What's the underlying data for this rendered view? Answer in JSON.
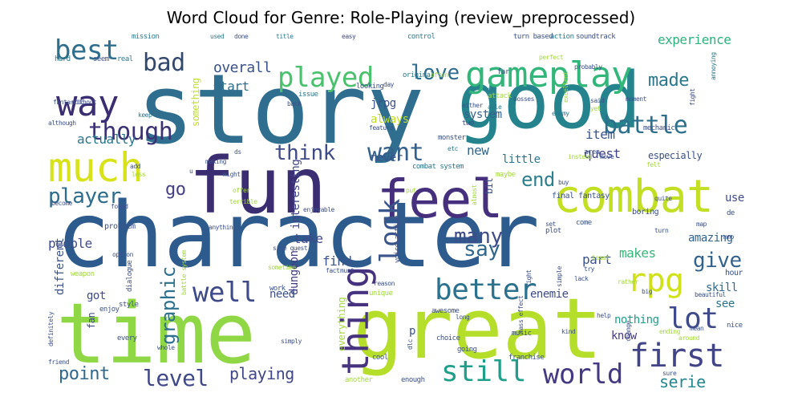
{
  "figure": {
    "title": "Word Cloud for Genre: Role-Playing (review_preprocessed)"
  },
  "chart_data": {
    "type": "wordcloud",
    "words": [
      {
        "text": "story",
        "size": 120,
        "color": "#2f6e8e"
      },
      {
        "text": "good",
        "size": 96,
        "color": "#25838e"
      },
      {
        "text": "character",
        "size": 112,
        "color": "#2e5b8d"
      },
      {
        "text": "time",
        "size": 104,
        "color": "#8fd744"
      },
      {
        "text": "great",
        "size": 104,
        "color": "#b5de2b"
      },
      {
        "text": "fun",
        "size": 96,
        "color": "#3b2d72"
      },
      {
        "text": "feel",
        "size": 66,
        "color": "#462f7c"
      },
      {
        "text": "combat",
        "size": 56,
        "color": "#c2df23"
      },
      {
        "text": "much",
        "size": 50,
        "color": "#d8e219"
      },
      {
        "text": "gameplay",
        "size": 44,
        "color": "#32b67a"
      },
      {
        "text": "played",
        "size": 34,
        "color": "#4ac16d"
      },
      {
        "text": "way",
        "size": 44,
        "color": "#3b2d72"
      },
      {
        "text": "best",
        "size": 34,
        "color": "#2e6e8e"
      },
      {
        "text": "bad",
        "size": 30,
        "color": "#32486f"
      },
      {
        "text": "love",
        "size": 26,
        "color": "#2f6c8e"
      },
      {
        "text": "though",
        "size": 30,
        "color": "#3b3275"
      },
      {
        "text": "thing",
        "size": 46,
        "color": "#46327e"
      },
      {
        "text": "look",
        "size": 34,
        "color": "#3a548c"
      },
      {
        "text": "want",
        "size": 30,
        "color": "#34618d"
      },
      {
        "text": "better",
        "size": 36,
        "color": "#2c728e"
      },
      {
        "text": "battle",
        "size": 30,
        "color": "#2d708e"
      },
      {
        "text": "think",
        "size": 26,
        "color": "#3e4a89"
      },
      {
        "text": "made",
        "size": 22,
        "color": "#2a788e"
      },
      {
        "text": "first",
        "size": 40,
        "color": "#414487"
      },
      {
        "text": "lot",
        "size": 36,
        "color": "#3e4a89"
      },
      {
        "text": "rpg",
        "size": 40,
        "color": "#d0e11c"
      },
      {
        "text": "still",
        "size": 36,
        "color": "#1f9e89"
      },
      {
        "text": "world",
        "size": 34,
        "color": "#443983"
      },
      {
        "text": "well",
        "size": 34,
        "color": "#3f4a8a"
      },
      {
        "text": "level",
        "size": 28,
        "color": "#3f4889"
      },
      {
        "text": "player",
        "size": 26,
        "color": "#2e6c8e"
      },
      {
        "text": "point",
        "size": 22,
        "color": "#31688e"
      },
      {
        "text": "many",
        "size": 26,
        "color": "#3e4c8a"
      },
      {
        "text": "say",
        "size": 26,
        "color": "#31678e"
      },
      {
        "text": "give",
        "size": 26,
        "color": "#33638d"
      },
      {
        "text": "end",
        "size": 24,
        "color": "#2c7f8e"
      },
      {
        "text": "go",
        "size": 22,
        "color": "#423f85"
      },
      {
        "text": "graphic",
        "size": 24,
        "color": "#2d718e"
      },
      {
        "text": "playing",
        "size": 20,
        "color": "#3f4788"
      },
      {
        "text": "serie",
        "size": 20,
        "color": "#24868e"
      },
      {
        "text": "experience",
        "size": 16,
        "color": "#2db27d"
      },
      {
        "text": "overall",
        "size": 18,
        "color": "#3b518b"
      },
      {
        "text": "start",
        "size": 16,
        "color": "#2e6f8e"
      },
      {
        "text": "actually",
        "size": 16,
        "color": "#2a768e"
      },
      {
        "text": "item",
        "size": 16,
        "color": "#3a548c"
      },
      {
        "text": "quest",
        "size": 16,
        "color": "#404688"
      },
      {
        "text": "system",
        "size": 14,
        "color": "#34618d"
      },
      {
        "text": "always",
        "size": 14,
        "color": "#c0df25"
      },
      {
        "text": "jrpg",
        "size": 14,
        "color": "#3b518b"
      },
      {
        "text": "new",
        "size": 16,
        "color": "#31678e"
      },
      {
        "text": "little",
        "size": 14,
        "color": "#2a768e"
      },
      {
        "text": "never",
        "size": 14,
        "color": "#39568c"
      },
      {
        "text": "interesting",
        "size": 14,
        "color": "#404588"
      },
      {
        "text": "dungeon",
        "size": 14,
        "color": "#433d84"
      },
      {
        "text": "people",
        "size": 16,
        "color": "#3e4c8a"
      },
      {
        "text": "take",
        "size": 16,
        "color": "#3e4989"
      },
      {
        "text": "find",
        "size": 16,
        "color": "#3a538b"
      },
      {
        "text": "part",
        "size": 16,
        "color": "#3b518b"
      },
      {
        "text": "makes",
        "size": 16,
        "color": "#35b779"
      },
      {
        "text": "amazing",
        "size": 14,
        "color": "#33638d"
      },
      {
        "text": "use",
        "size": 14,
        "color": "#3e4a89"
      },
      {
        "text": "skill",
        "size": 14,
        "color": "#31678e"
      },
      {
        "text": "see",
        "size": 14,
        "color": "#2c738e"
      },
      {
        "text": "nothing",
        "size": 14,
        "color": "#1f9e89"
      },
      {
        "text": "know",
        "size": 14,
        "color": "#443a83"
      },
      {
        "text": "enemie",
        "size": 14,
        "color": "#3e4c8a"
      },
      {
        "text": "need",
        "size": 14,
        "color": "#3b518b"
      },
      {
        "text": "got",
        "size": 14,
        "color": "#3e4989"
      },
      {
        "text": "different",
        "size": 14,
        "color": "#3b528b"
      },
      {
        "text": "everything",
        "size": 12,
        "color": "#a2da37"
      },
      {
        "text": "fan",
        "size": 12,
        "color": "#3e4a89"
      },
      {
        "text": "mission",
        "size": 9,
        "color": "#2a788e"
      },
      {
        "text": "used",
        "size": 8,
        "color": "#2a788e"
      },
      {
        "text": "done",
        "size": 8,
        "color": "#3b518b"
      },
      {
        "text": "title",
        "size": 8,
        "color": "#2a788e"
      },
      {
        "text": "easy",
        "size": 8,
        "color": "#3e4a89"
      },
      {
        "text": "control",
        "size": 9,
        "color": "#2a788e"
      },
      {
        "text": "turn based",
        "size": 9,
        "color": "#3b518b"
      },
      {
        "text": "action",
        "size": 9,
        "color": "#2a788e"
      },
      {
        "text": "soundtrack",
        "size": 9,
        "color": "#3b518b"
      },
      {
        "text": "hard",
        "size": 9,
        "color": "#2a788e"
      },
      {
        "text": "seem",
        "size": 9,
        "color": "#3b518b"
      },
      {
        "text": "real",
        "size": 9,
        "color": "#2a788e"
      },
      {
        "text": "fantastic",
        "size": 8,
        "color": "#3b518b"
      },
      {
        "text": "without",
        "size": 8,
        "color": "#3e4a89"
      },
      {
        "text": "although",
        "size": 8,
        "color": "#3b518b"
      },
      {
        "text": "keep",
        "size": 8,
        "color": "#2a788e"
      },
      {
        "text": "issue",
        "size": 9,
        "color": "#2a788e"
      },
      {
        "text": "looking",
        "size": 9,
        "color": "#3b518b"
      },
      {
        "text": "original",
        "size": 9,
        "color": "#2a788e"
      },
      {
        "text": "often",
        "size": 8,
        "color": "#a2da37"
      },
      {
        "text": "perfect",
        "size": 8,
        "color": "#a2da37"
      },
      {
        "text": "probably",
        "size": 8,
        "color": "#3b518b"
      },
      {
        "text": "far",
        "size": 9,
        "color": "#3e4a89"
      },
      {
        "text": "day",
        "size": 8,
        "color": "#3b518b"
      },
      {
        "text": "may",
        "size": 8,
        "color": "#2a788e"
      },
      {
        "text": "bosses",
        "size": 8,
        "color": "#3b518b"
      },
      {
        "text": "attack",
        "size": 9,
        "color": "#a2da37"
      },
      {
        "text": "either",
        "size": 8,
        "color": "#3b518b"
      },
      {
        "text": "able",
        "size": 8,
        "color": "#2a788e"
      },
      {
        "text": "said",
        "size": 8,
        "color": "#3b518b"
      },
      {
        "text": "yet",
        "size": 8,
        "color": "#a2da37"
      },
      {
        "text": "excellent",
        "size": 8,
        "color": "#a2da37"
      },
      {
        "text": "moment",
        "size": 8,
        "color": "#3b518b"
      },
      {
        "text": "fight",
        "size": 8,
        "color": "#3e4a89"
      },
      {
        "text": "annoying",
        "size": 8,
        "color": "#2a788e"
      },
      {
        "text": "back",
        "size": 8,
        "color": "#3b518b"
      },
      {
        "text": "let",
        "size": 8,
        "color": "#2a788e"
      },
      {
        "text": "feature",
        "size": 8,
        "color": "#3b518b"
      },
      {
        "text": "two",
        "size": 9,
        "color": "#3e4a89"
      },
      {
        "text": "monster",
        "size": 9,
        "color": "#3b518b"
      },
      {
        "text": "etc",
        "size": 8,
        "color": "#2a788e"
      },
      {
        "text": "area",
        "size": 9,
        "color": "#3b518b"
      },
      {
        "text": "enemy",
        "size": 8,
        "color": "#2a788e"
      },
      {
        "text": "mechanic",
        "size": 9,
        "color": "#3b518b"
      },
      {
        "text": "especially",
        "size": 12,
        "color": "#3b518b"
      },
      {
        "text": "move",
        "size": 8,
        "color": "#3b518b"
      },
      {
        "text": "felt",
        "size": 8,
        "color": "#a2da37"
      },
      {
        "text": "instead",
        "size": 8,
        "color": "#a2da37"
      },
      {
        "text": "combat system",
        "size": 9,
        "color": "#2a788e"
      },
      {
        "text": "maybe",
        "size": 9,
        "color": "#a2da37"
      },
      {
        "text": "making",
        "size": 8,
        "color": "#3b518b"
      },
      {
        "text": "ds",
        "size": 8,
        "color": "#3b518b"
      },
      {
        "text": "add",
        "size": 8,
        "color": "#3b518b"
      },
      {
        "text": "less",
        "size": 8,
        "color": "#a2da37"
      },
      {
        "text": "might",
        "size": 8,
        "color": "#3b518b"
      },
      {
        "text": "offer",
        "size": 8,
        "color": "#a2da37"
      },
      {
        "text": "u",
        "size": 8,
        "color": "#3b518b"
      },
      {
        "text": "put",
        "size": 8,
        "color": "#a2da37"
      },
      {
        "text": "final fantasy",
        "size": 10,
        "color": "#3b518b"
      },
      {
        "text": "boring",
        "size": 10,
        "color": "#3b518b"
      },
      {
        "text": "de",
        "size": 9,
        "color": "#3b518b"
      },
      {
        "text": "quite",
        "size": 8,
        "color": "#3b518b"
      },
      {
        "text": "buy",
        "size": 8,
        "color": "#3b518b"
      },
      {
        "text": "become",
        "size": 8,
        "color": "#3b518b"
      },
      {
        "text": "found",
        "size": 8,
        "color": "#3b518b"
      },
      {
        "text": "terrible",
        "size": 8,
        "color": "#a2da37"
      },
      {
        "text": "anything",
        "size": 8,
        "color": "#3b518b"
      },
      {
        "text": "enjoyable",
        "size": 8,
        "color": "#3b518b"
      },
      {
        "text": "problem",
        "size": 10,
        "color": "#3b518b"
      },
      {
        "text": "option",
        "size": 8,
        "color": "#3b518b"
      },
      {
        "text": "battle system",
        "size": 8,
        "color": "#a2da37"
      },
      {
        "text": "side quest",
        "size": 8,
        "color": "#3b518b"
      },
      {
        "text": "sometime",
        "size": 8,
        "color": "#a2da37"
      },
      {
        "text": "voice acting",
        "size": 9,
        "color": "#3b518b"
      },
      {
        "text": "almost",
        "size": 8,
        "color": "#a2da37"
      },
      {
        "text": "set",
        "size": 8,
        "color": "#3b518b"
      },
      {
        "text": "come",
        "size": 9,
        "color": "#3b518b"
      },
      {
        "text": "plot",
        "size": 9,
        "color": "#3b518b"
      },
      {
        "text": "turn",
        "size": 8,
        "color": "#3b518b"
      },
      {
        "text": "map",
        "size": 8,
        "color": "#3b518b"
      },
      {
        "text": "mmo",
        "size": 8,
        "color": "#3b518b"
      },
      {
        "text": "least",
        "size": 8,
        "color": "#a2da37"
      },
      {
        "text": "try",
        "size": 8,
        "color": "#3b518b"
      },
      {
        "text": "hour",
        "size": 10,
        "color": "#3b518b"
      },
      {
        "text": "lack",
        "size": 8,
        "color": "#3b518b"
      },
      {
        "text": "rather",
        "size": 8,
        "color": "#a2da37"
      },
      {
        "text": "big",
        "size": 8,
        "color": "#3b518b"
      },
      {
        "text": "beautiful",
        "size": 8,
        "color": "#3b518b"
      },
      {
        "text": "weapon",
        "size": 9,
        "color": "#a2da37"
      },
      {
        "text": "dialogue",
        "size": 9,
        "color": "#3b518b"
      },
      {
        "text": "fact",
        "size": 8,
        "color": "#3b518b"
      },
      {
        "text": "must",
        "size": 8,
        "color": "#3b518b"
      },
      {
        "text": "reason",
        "size": 8,
        "color": "#3b518b"
      },
      {
        "text": "work",
        "size": 9,
        "color": "#3b518b"
      },
      {
        "text": "unique",
        "size": 9,
        "color": "#a2da37"
      },
      {
        "text": "right",
        "size": 8,
        "color": "#3b518b"
      },
      {
        "text": "simple",
        "size": 8,
        "color": "#3b518b"
      },
      {
        "text": "nice",
        "size": 9,
        "color": "#3b518b"
      },
      {
        "text": "style",
        "size": 9,
        "color": "#3b518b"
      },
      {
        "text": "enjoy",
        "size": 9,
        "color": "#3b518b"
      },
      {
        "text": "every",
        "size": 9,
        "color": "#3b518b"
      },
      {
        "text": "definitely",
        "size": 8,
        "color": "#3b518b"
      },
      {
        "text": "whole",
        "size": 8,
        "color": "#3b518b"
      },
      {
        "text": "friend",
        "size": 8,
        "color": "#3b518b"
      },
      {
        "text": "simply",
        "size": 8,
        "color": "#3b518b"
      },
      {
        "text": "awesome",
        "size": 9,
        "color": "#3b518b"
      },
      {
        "text": "long",
        "size": 8,
        "color": "#3b518b"
      },
      {
        "text": "choice",
        "size": 9,
        "color": "#3b518b"
      },
      {
        "text": "music",
        "size": 9,
        "color": "#3b518b"
      },
      {
        "text": "mass effect",
        "size": 8,
        "color": "#3b518b"
      },
      {
        "text": "kind",
        "size": 8,
        "color": "#3b518b"
      },
      {
        "text": "help",
        "size": 8,
        "color": "#3b518b"
      },
      {
        "text": "change",
        "size": 8,
        "color": "#3b518b"
      },
      {
        "text": "ending",
        "size": 8,
        "color": "#a2da37"
      },
      {
        "text": "mean",
        "size": 8,
        "color": "#3b518b"
      },
      {
        "text": "around",
        "size": 8,
        "color": "#a2da37"
      },
      {
        "text": "sure",
        "size": 8,
        "color": "#3b518b"
      },
      {
        "text": "going",
        "size": 9,
        "color": "#3b518b"
      },
      {
        "text": "cool",
        "size": 9,
        "color": "#3b518b"
      },
      {
        "text": "dlc",
        "size": 8,
        "color": "#3b518b"
      },
      {
        "text": "franchise",
        "size": 9,
        "color": "#3b518b"
      },
      {
        "text": "another",
        "size": 9,
        "color": "#a2da37"
      },
      {
        "text": "enough",
        "size": 9,
        "color": "#3b518b"
      },
      {
        "text": "p",
        "size": 14,
        "color": "#3b518b"
      },
      {
        "text": "bit",
        "size": 12,
        "color": "#3b518b"
      },
      {
        "text": "something",
        "size": 12,
        "color": "#c0df25"
      }
    ]
  }
}
